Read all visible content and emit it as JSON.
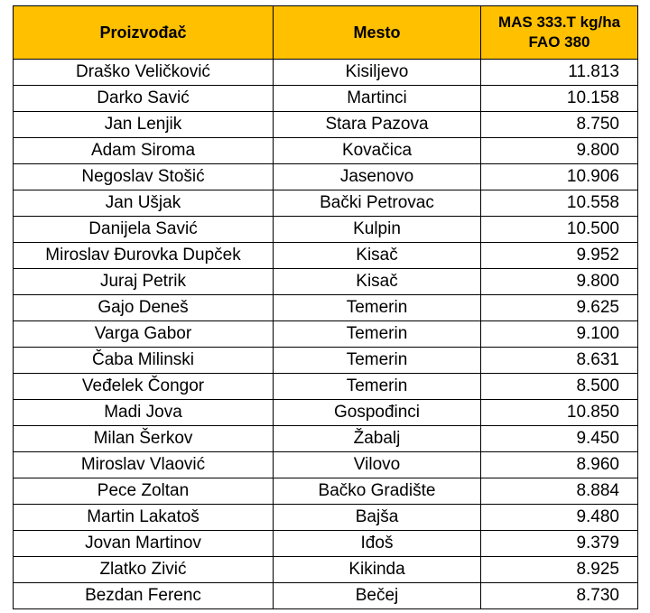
{
  "table": {
    "header": {
      "producer": "Proizvođač",
      "place": "Mesto",
      "yield_line1": "MAS 333.T kg/ha",
      "yield_line2": "FAO 380"
    },
    "colors": {
      "header_bg": "#ffc000",
      "border": "#000000"
    },
    "rows": [
      {
        "producer": "Draško Veličković",
        "place": "Kisiljevo",
        "yield": "11.813"
      },
      {
        "producer": "Darko Savić",
        "place": "Martinci",
        "yield": "10.158"
      },
      {
        "producer": "Jan Lenjik",
        "place": "Stara Pazova",
        "yield": "8.750"
      },
      {
        "producer": "Adam Siroma",
        "place": "Kovačica",
        "yield": "9.800"
      },
      {
        "producer": "Negoslav Stošić",
        "place": "Jasenovo",
        "yield": "10.906"
      },
      {
        "producer": "Jan Ušjak",
        "place": "Bački Petrovac",
        "yield": "10.558"
      },
      {
        "producer": "Danijela Savić",
        "place": "Kulpin",
        "yield": "10.500"
      },
      {
        "producer": "Miroslav Đurovka Dupček",
        "place": "Kisač",
        "yield": "9.952"
      },
      {
        "producer": "Juraj Petrik",
        "place": "Kisač",
        "yield": "9.800"
      },
      {
        "producer": "Gajo Deneš",
        "place": "Temerin",
        "yield": "9.625"
      },
      {
        "producer": "Varga Gabor",
        "place": "Temerin",
        "yield": "9.100"
      },
      {
        "producer": "Čaba Milinski",
        "place": "Temerin",
        "yield": "8.631"
      },
      {
        "producer": "Veđelek Čongor",
        "place": "Temerin",
        "yield": "8.500"
      },
      {
        "producer": "Madi Jova",
        "place": "Gospođinci",
        "yield": "10.850"
      },
      {
        "producer": "Milan Šerkov",
        "place": "Žabalj",
        "yield": "9.450"
      },
      {
        "producer": "Miroslav Vlaović",
        "place": "Vilovo",
        "yield": "8.960"
      },
      {
        "producer": "Pece Zoltan",
        "place": "Bačko Gradište",
        "yield": "8.884"
      },
      {
        "producer": "Martin Lakatoš",
        "place": "Bajša",
        "yield": "9.480"
      },
      {
        "producer": "Jovan Martinov",
        "place": "Iđoš",
        "yield": "9.379"
      },
      {
        "producer": "Zlatko Zivić",
        "place": "Kikinda",
        "yield": "8.925"
      },
      {
        "producer": "Bezdan Ferenc",
        "place": "Bečej",
        "yield": "8.730"
      }
    ]
  }
}
